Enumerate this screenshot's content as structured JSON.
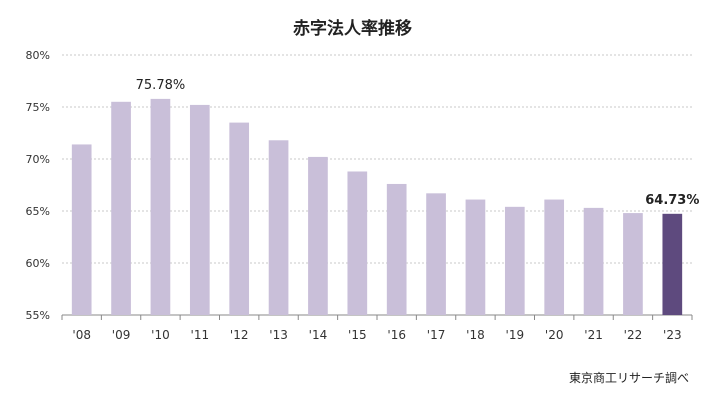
{
  "chart_data": {
    "type": "bar",
    "title": "赤字法人率推移",
    "source": "東京商工リサーチ調べ",
    "categories": [
      "'08",
      "'09",
      "'10",
      "'11",
      "'12",
      "'13",
      "'14",
      "'15",
      "'16",
      "'17",
      "'18",
      "'19",
      "'20",
      "'21",
      "'22",
      "'23"
    ],
    "values": [
      71.4,
      75.5,
      75.78,
      75.2,
      73.5,
      71.8,
      70.2,
      68.8,
      67.6,
      66.7,
      66.1,
      65.4,
      66.1,
      65.3,
      64.8,
      64.73
    ],
    "y_ticks": [
      "55%",
      "60%",
      "65%",
      "70%",
      "75%",
      "80%"
    ],
    "ylim": [
      55,
      80
    ],
    "grid": true,
    "bar_color": "#c9bfd9",
    "highlight_color": "#5e4a7e",
    "highlight_index": 15,
    "data_labels": [
      {
        "index": 2,
        "text": "75.78%"
      },
      {
        "index": 15,
        "text": "64.73%"
      }
    ]
  }
}
